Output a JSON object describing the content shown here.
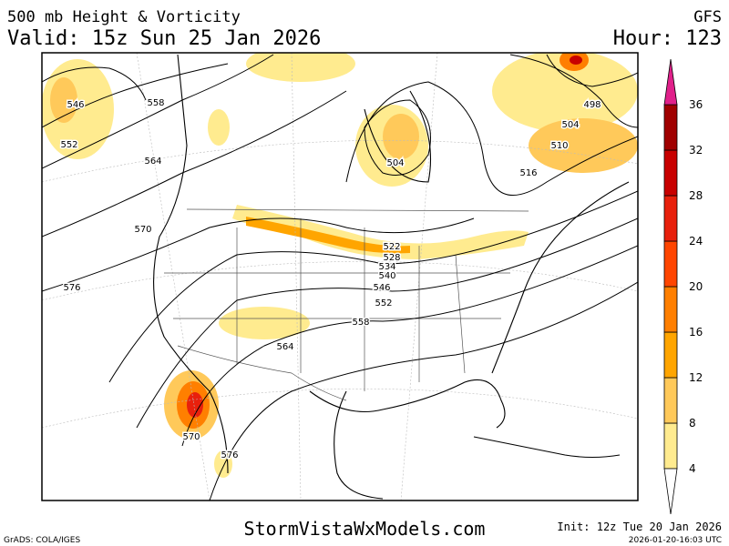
{
  "header": {
    "title": "500 mb Height & Vorticity",
    "valid": "Valid: 15z Sun 25 Jan 2026",
    "model": "GFS",
    "hour": "Hour: 123"
  },
  "colorbar": {
    "labels": [
      4,
      8,
      12,
      16,
      20,
      24,
      28,
      32,
      36
    ]
  },
  "contour_labels": [
    546,
    552,
    558,
    564,
    570,
    576,
    504,
    498,
    504,
    510,
    516,
    522,
    528,
    534,
    540,
    546,
    552,
    558,
    564,
    570,
    576
  ],
  "footer": {
    "software": "GrADS: COLA/IGES",
    "site": "StormVistaWxModels.com",
    "init": "Init: 12z Tue 20 Jan 2026",
    "timestamp": "2026-01-20-16:03 UTC"
  }
}
